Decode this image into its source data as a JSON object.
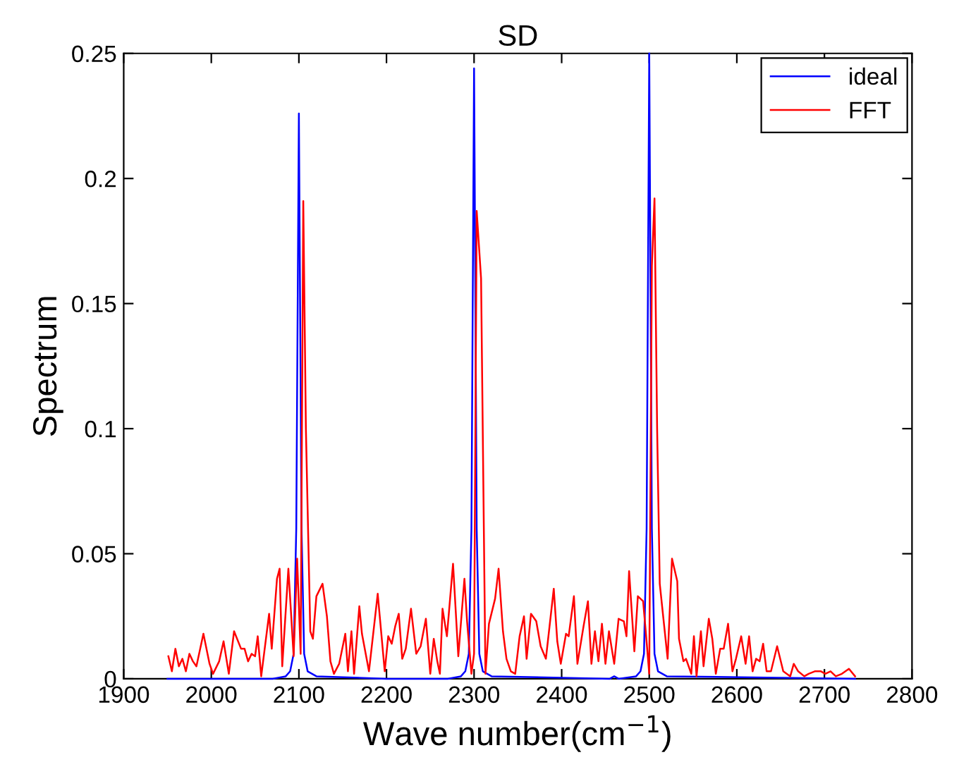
{
  "chart_data": {
    "type": "line",
    "title": "SD",
    "xlabel": "Wave number(cm$^{−1}$)",
    "ylabel": "Spectrum",
    "xlim": [
      1900,
      2800
    ],
    "xticks": [
      1900,
      2000,
      2100,
      2200,
      2300,
      2400,
      2500,
      2600,
      2700,
      2800
    ],
    "ylim": [
      0,
      0.25
    ],
    "yticks": [
      0,
      0.05,
      0.1,
      0.15,
      0.2,
      0.25
    ],
    "grid": false,
    "legend": "top right",
    "series": [
      {
        "name": "ideal",
        "color": "#0000ff",
        "x": [
          1950,
          2070,
          2085,
          2090,
          2094,
          2097,
          2100,
          2103,
          2106,
          2110,
          2120,
          2200,
          2270,
          2285,
          2290,
          2294,
          2297,
          2300,
          2303,
          2306,
          2310,
          2320,
          2455,
          2460,
          2465,
          2485,
          2490,
          2494,
          2497,
          2500,
          2503,
          2506,
          2510,
          2520,
          2735
        ],
        "values": [
          0,
          0,
          0.001,
          0.003,
          0.01,
          0.06,
          0.226,
          0.06,
          0.01,
          0.003,
          0.001,
          0,
          0,
          0.001,
          0.003,
          0.01,
          0.06,
          0.244,
          0.06,
          0.01,
          0.003,
          0.001,
          0,
          0.001,
          0,
          0.001,
          0.003,
          0.01,
          0.06,
          0.25,
          0.06,
          0.01,
          0.003,
          0.001,
          0
        ]
      },
      {
        "name": "FFT",
        "color": "#ff0000",
        "x": [
          1951,
          1955,
          1959,
          1963,
          1967,
          1971,
          1975,
          1979,
          1983,
          1991,
          1998,
          2002,
          2009,
          2014,
          2020,
          2026,
          2034,
          2038,
          2042,
          2046,
          2050,
          2053,
          2057,
          2066,
          2069,
          2075,
          2078,
          2081,
          2088,
          2094,
          2098,
          2102,
          2105,
          2108,
          2113,
          2116,
          2120,
          2127,
          2132,
          2136,
          2140,
          2146,
          2153,
          2156,
          2160,
          2163,
          2169,
          2172,
          2180,
          2190,
          2198,
          2202,
          2206,
          2210,
          2214,
          2218,
          2222,
          2228,
          2234,
          2239,
          2245,
          2250,
          2254,
          2258,
          2261,
          2264,
          2269,
          2276,
          2282,
          2289,
          2292,
          2297,
          2300,
          2303,
          2308,
          2313,
          2317,
          2324,
          2328,
          2333,
          2337,
          2342,
          2347,
          2352,
          2357,
          2360,
          2365,
          2371,
          2376,
          2382,
          2391,
          2395,
          2399,
          2405,
          2408,
          2414,
          2418,
          2425,
          2430,
          2434,
          2438,
          2442,
          2446,
          2450,
          2454,
          2460,
          2465,
          2471,
          2474,
          2477,
          2483,
          2487,
          2493,
          2496,
          2500,
          2503,
          2506,
          2509,
          2512,
          2521,
          2526,
          2532,
          2534,
          2539,
          2542,
          2548,
          2551,
          2554,
          2559,
          2562,
          2568,
          2572,
          2576,
          2581,
          2585,
          2590,
          2595,
          2599,
          2605,
          2610,
          2614,
          2618,
          2622,
          2626,
          2630,
          2634,
          2639,
          2646,
          2653,
          2661,
          2665,
          2670,
          2677,
          2682,
          2689,
          2696,
          2701,
          2707,
          2713,
          2720,
          2728,
          2735
        ],
        "values": [
          0.009,
          0.003,
          0.012,
          0.005,
          0.008,
          0.003,
          0.01,
          0.007,
          0.005,
          0.018,
          0.006,
          0.002,
          0.007,
          0.015,
          0.002,
          0.019,
          0.012,
          0.012,
          0.007,
          0.01,
          0.009,
          0.017,
          0.001,
          0.026,
          0.012,
          0.04,
          0.044,
          0.005,
          0.044,
          0.009,
          0.048,
          0.01,
          0.191,
          0.1,
          0.019,
          0.016,
          0.033,
          0.038,
          0.025,
          0.007,
          0.002,
          0.006,
          0.018,
          0.003,
          0.019,
          0.002,
          0.029,
          0.018,
          0.003,
          0.034,
          0.003,
          0.017,
          0.014,
          0.021,
          0.026,
          0.008,
          0.012,
          0.028,
          0.01,
          0.013,
          0.024,
          0.002,
          0.016,
          0.007,
          0.002,
          0.028,
          0.017,
          0.046,
          0.009,
          0.04,
          0.023,
          0.002,
          0.01,
          0.187,
          0.16,
          0.002,
          0.022,
          0.032,
          0.044,
          0.019,
          0.008,
          0.003,
          0.002,
          0.017,
          0.025,
          0.008,
          0.026,
          0.023,
          0.013,
          0.008,
          0.036,
          0.015,
          0.006,
          0.018,
          0.017,
          0.033,
          0.006,
          0.021,
          0.031,
          0.006,
          0.019,
          0.007,
          0.022,
          0.006,
          0.019,
          0.006,
          0.024,
          0.023,
          0.017,
          0.043,
          0.011,
          0.033,
          0.031,
          0.019,
          0.002,
          0.165,
          0.192,
          0.1,
          0.038,
          0.008,
          0.048,
          0.039,
          0.016,
          0.007,
          0.008,
          0.002,
          0.017,
          0.001,
          0.019,
          0.005,
          0.024,
          0.016,
          0.002,
          0.012,
          0.012,
          0.022,
          0.003,
          0.008,
          0.017,
          0.006,
          0.017,
          0.003,
          0.008,
          0.007,
          0.014,
          0.003,
          0.003,
          0.013,
          0.003,
          0.001,
          0.006,
          0.003,
          0.001,
          0.002,
          0.003,
          0.003,
          0.002,
          0.003,
          0.001,
          0.002,
          0.004,
          0.001
        ]
      }
    ]
  }
}
